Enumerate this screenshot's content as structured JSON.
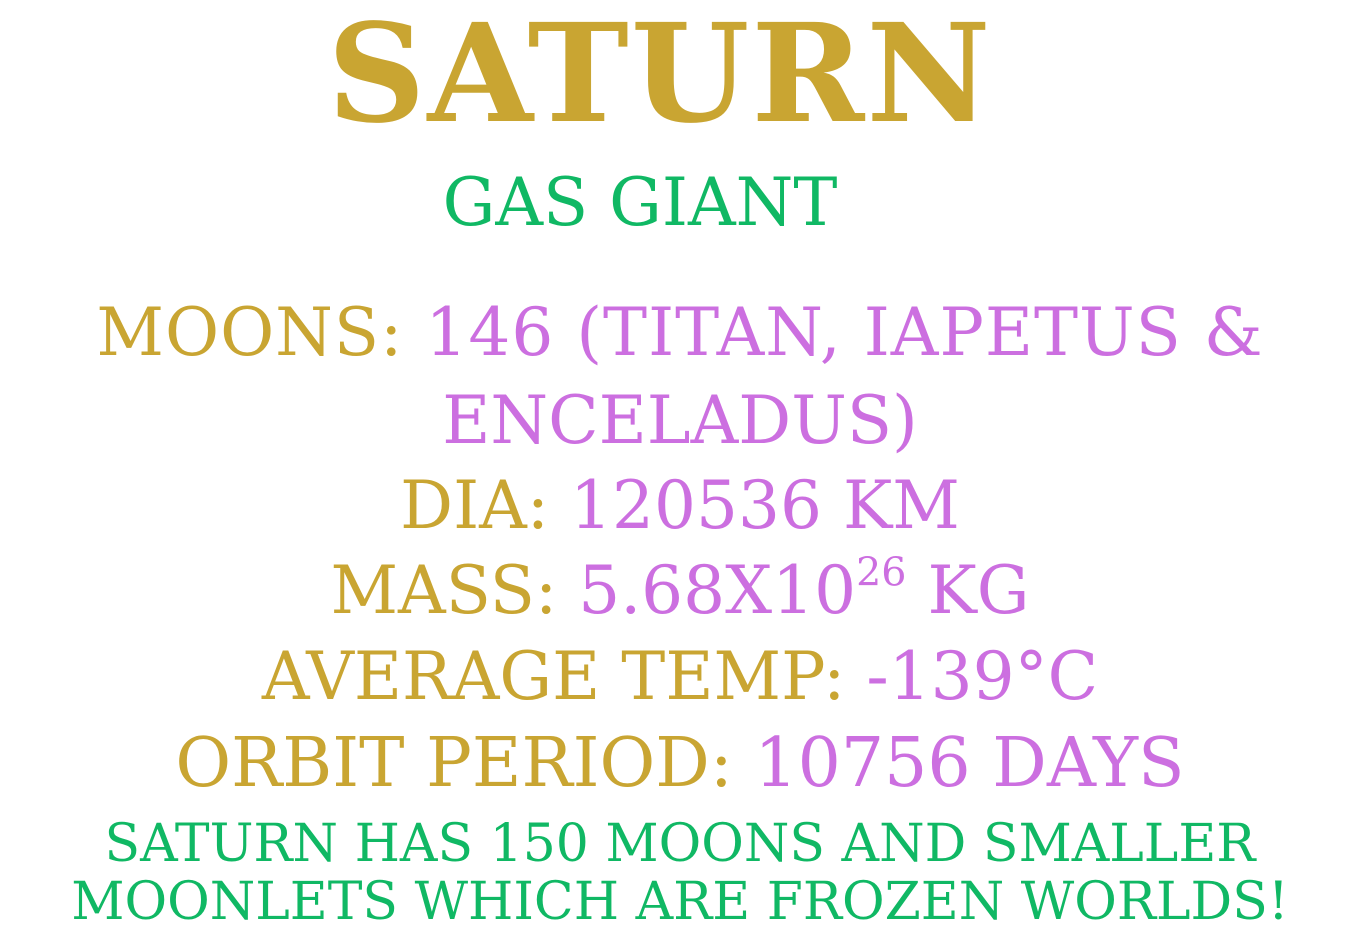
{
  "colors": {
    "gold": "#c9a532",
    "purple": "#cc6fe0",
    "green": "#10b864"
  },
  "title": "SATURN",
  "subtitle": "GAS GIANT",
  "moons": {
    "label": "MOONS:",
    "value_line1": "146 (TITAN, IAPETUS &",
    "value_line2": "ENCELADUS)"
  },
  "diameter": {
    "label": "DIA:",
    "value": "120536 KM"
  },
  "mass": {
    "label": "MASS:",
    "value_base": "5.68X10",
    "value_exponent": "26",
    "value_unit": "KG"
  },
  "temperature": {
    "label": "AVERAGE TEMP:",
    "value": "-139°C"
  },
  "orbit": {
    "label": "ORBIT PERIOD:",
    "value": "10756 DAYS"
  },
  "fact": {
    "line1": "SATURN HAS 150 MOONS AND SMALLER",
    "line2": "MOONLETS WHICH ARE FROZEN WORLDS!"
  }
}
